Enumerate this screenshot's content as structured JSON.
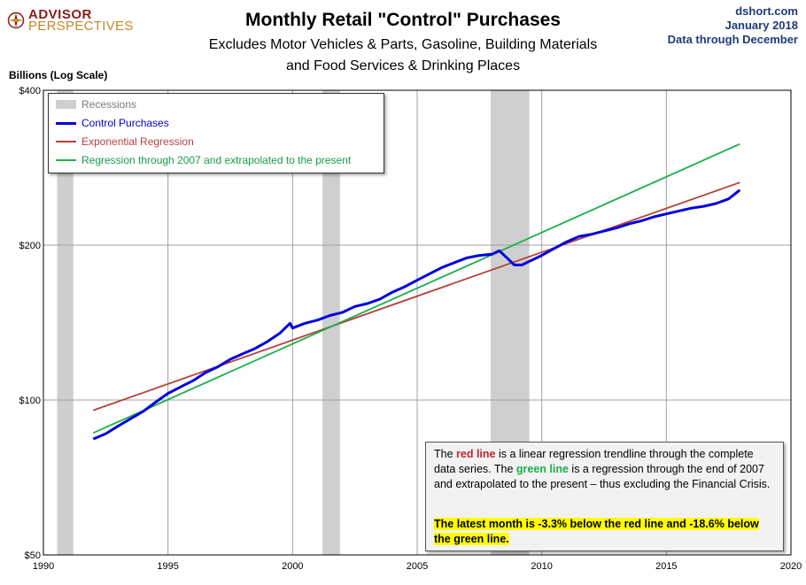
{
  "logo": {
    "line1": "ADVISOR",
    "line2": "PERSPECTIVES",
    "icon": "compass-icon"
  },
  "header": {
    "title": "Monthly Retail \"Control\" Purchases",
    "subtitle_line1": "Excludes Motor Vehicles & Parts, Gasoline, Building Materials",
    "subtitle_line2": "and Food Services & Drinking Places"
  },
  "source": {
    "site": "dshort.com",
    "date": "January 2018",
    "through": "Data through December"
  },
  "legend": {
    "recessions": "Recessions",
    "control": "Control Purchases",
    "exp": "Exponential Regression",
    "reg2007": "Regression through 2007 and extrapolated to the present"
  },
  "note": {
    "p1_a": "The ",
    "p1_red": "red line",
    "p1_b": " is a  linear regression trendline  through the complete data series. The ",
    "p1_green": "green line",
    "p1_c": " is a regression through the end of 2007 and extrapolated to the present – thus excluding the Financial Crisis.",
    "highlight": "The latest month is  -3.3%  below the red line and -18.6% below the green line."
  },
  "colors": {
    "control": "#0000dd",
    "exp": "#b5413a",
    "reg2007": "#1ab04a",
    "recession": "#cfcfcf",
    "grid": "#a0a0a0"
  },
  "chart_data": {
    "type": "line",
    "title": "Monthly Retail \"Control\" Purchases",
    "ylabel": "Billions (Log Scale)",
    "yscale": "log",
    "ylim": [
      50,
      400
    ],
    "xlim": [
      1990,
      2020
    ],
    "y_ticks": [
      {
        "v": 50,
        "label": "$50"
      },
      {
        "v": 100,
        "label": "$100"
      },
      {
        "v": 200,
        "label": "$200"
      },
      {
        "v": 400,
        "label": "$400"
      }
    ],
    "x_ticks": [
      1990,
      1995,
      2000,
      2005,
      2010,
      2015,
      2020
    ],
    "grid": true,
    "legend_position": "top-left",
    "recessions": [
      [
        1990.55,
        1991.2
      ],
      [
        2001.2,
        2001.9
      ],
      [
        2007.95,
        2009.5
      ]
    ],
    "series": [
      {
        "name": "Control Purchases",
        "color": "#0000dd",
        "x": [
          1992.0,
          1992.5,
          1993.0,
          1993.5,
          1994.0,
          1994.5,
          1995.0,
          1995.5,
          1996.0,
          1996.5,
          1997.0,
          1997.5,
          1998.0,
          1998.5,
          1999.0,
          1999.5,
          1999.9,
          2000.0,
          2000.5,
          2001.0,
          2001.5,
          2002.0,
          2002.5,
          2003.0,
          2003.5,
          2004.0,
          2004.5,
          2005.0,
          2005.5,
          2006.0,
          2006.5,
          2007.0,
          2007.5,
          2008.0,
          2008.3,
          2008.6,
          2008.9,
          2009.2,
          2009.5,
          2010.0,
          2010.5,
          2011.0,
          2011.5,
          2012.0,
          2012.5,
          2013.0,
          2013.5,
          2014.0,
          2014.5,
          2015.0,
          2015.5,
          2016.0,
          2016.5,
          2017.0,
          2017.5,
          2017.95
        ],
        "y": [
          84,
          86,
          89,
          92,
          95,
          99,
          103,
          106,
          109,
          113,
          116,
          120,
          123,
          126,
          130,
          135,
          141,
          138,
          141,
          143,
          146,
          148,
          152,
          154,
          157,
          162,
          166,
          171,
          176,
          181,
          185,
          189,
          191,
          192,
          195,
          189,
          183,
          183,
          186,
          191,
          197,
          203,
          208,
          210,
          213,
          216,
          220,
          223,
          227,
          230,
          233,
          236,
          238,
          241,
          246,
          256
        ]
      },
      {
        "name": "Exponential Regression",
        "color": "#b5413a",
        "x": [
          1992.0,
          2017.95
        ],
        "y": [
          95.5,
          264.7
        ]
      },
      {
        "name": "Regression through 2007 and extrapolated to the present",
        "color": "#1ab04a",
        "x": [
          1992.0,
          2017.95
        ],
        "y": [
          86.3,
          314.5
        ]
      }
    ]
  }
}
